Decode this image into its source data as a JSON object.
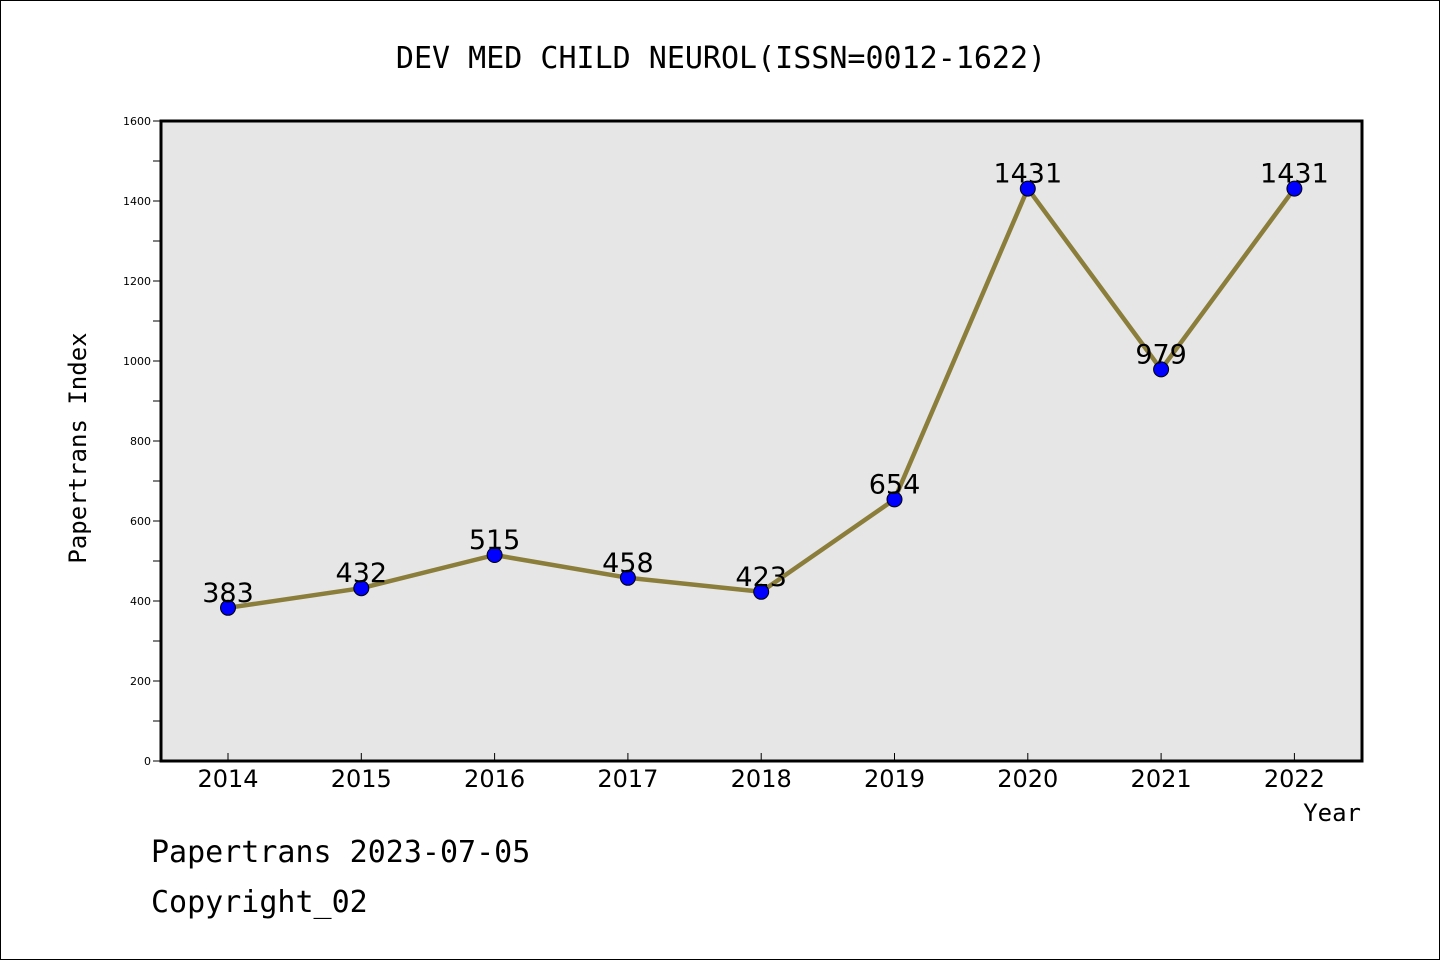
{
  "chart_data": {
    "type": "line",
    "title": "DEV MED CHILD NEUROL(ISSN=0012-1622)",
    "xlabel": "Year",
    "ylabel": "Papertrans Index",
    "x": [
      "2014",
      "2015",
      "2016",
      "2017",
      "2018",
      "2019",
      "2020",
      "2021",
      "2022"
    ],
    "series": [
      {
        "values": [
          383,
          432,
          515,
          458,
          423,
          654,
          1431,
          979,
          1431
        ]
      }
    ],
    "data_labels": [
      "383",
      "432",
      "515",
      "458",
      "423",
      "654",
      "1431",
      "979",
      "1431"
    ],
    "ylim": [
      0,
      1600
    ],
    "yticks": [
      0,
      200,
      400,
      600,
      800,
      1000,
      1200,
      1400,
      1600
    ],
    "yticks_minor": [
      100,
      300,
      500,
      700,
      900,
      1100,
      1300,
      1500
    ],
    "grid": false,
    "colors": {
      "line": "#8b7d3a",
      "marker": "#0000ff",
      "plot_background": "#e6e6e6"
    }
  },
  "footer": {
    "line1": "Papertrans 2023-07-05",
    "line2": "Copyright_02"
  }
}
